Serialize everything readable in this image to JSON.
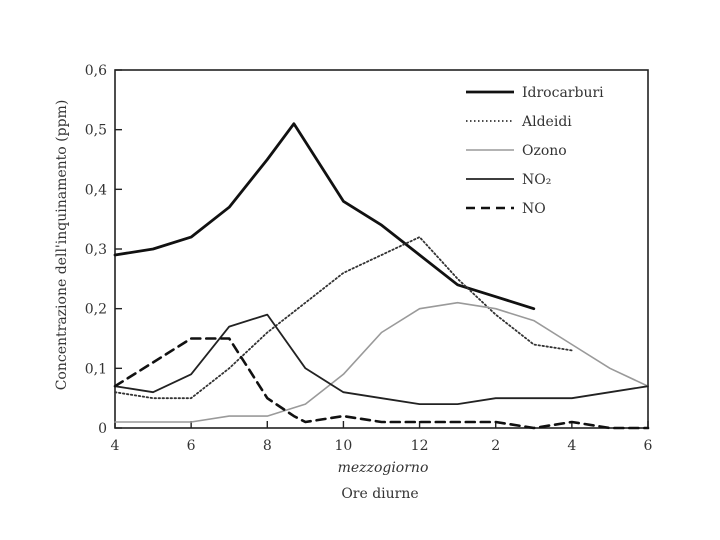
{
  "chart_data": {
    "type": "line",
    "ylabel": "Concentrazione dell'inquinamento (ppm)",
    "xlabel_line1": "mezzogiorno",
    "xlabel_line2": "Ore diurne",
    "hours": [
      4,
      5,
      6,
      7,
      8,
      9,
      10,
      11,
      12,
      13,
      14,
      15,
      16,
      17,
      18
    ],
    "xticks": [
      {
        "h": 4,
        "label": "4"
      },
      {
        "h": 6,
        "label": "6"
      },
      {
        "h": 8,
        "label": "8"
      },
      {
        "h": 10,
        "label": "10"
      },
      {
        "h": 12,
        "label": "12"
      },
      {
        "h": 14,
        "label": "2"
      },
      {
        "h": 16,
        "label": "4"
      },
      {
        "h": 18,
        "label": "6"
      }
    ],
    "yticks": [
      {
        "v": 0,
        "label": "0"
      },
      {
        "v": 0.1,
        "label": "0,1"
      },
      {
        "v": 0.2,
        "label": "0,2"
      },
      {
        "v": 0.3,
        "label": "0,3"
      },
      {
        "v": 0.4,
        "label": "0,4"
      },
      {
        "v": 0.5,
        "label": "0,5"
      },
      {
        "v": 0.6,
        "label": "0,6"
      }
    ],
    "xlim": [
      4,
      18
    ],
    "ylim": [
      0,
      0.6
    ],
    "grid": false,
    "legend_position": "top-right",
    "series": [
      {
        "name": "Idrocarburi",
        "style": "solid-thick",
        "color": "#111111",
        "x": [
          4,
          5,
          6,
          7,
          8,
          8.7,
          10,
          11,
          12,
          13,
          14,
          15
        ],
        "y": [
          0.29,
          0.3,
          0.32,
          0.37,
          0.45,
          0.51,
          0.38,
          0.34,
          0.29,
          0.24,
          0.22,
          0.2
        ]
      },
      {
        "name": "Aldeidi",
        "style": "dotted",
        "color": "#333333",
        "x": [
          4,
          5,
          6,
          7,
          8,
          9,
          10,
          11,
          12,
          13,
          14,
          15,
          16
        ],
        "y": [
          0.06,
          0.05,
          0.05,
          0.1,
          0.16,
          0.21,
          0.26,
          0.29,
          0.32,
          0.25,
          0.19,
          0.14,
          0.13
        ]
      },
      {
        "name": "Ozono",
        "style": "solid-light",
        "color": "#9a9a9a",
        "x": [
          4,
          5,
          6,
          7,
          8,
          9,
          10,
          11,
          12,
          13,
          14,
          15,
          16,
          17,
          18
        ],
        "y": [
          0.01,
          0.01,
          0.01,
          0.02,
          0.02,
          0.04,
          0.09,
          0.16,
          0.2,
          0.21,
          0.2,
          0.18,
          0.14,
          0.1,
          0.07
        ]
      },
      {
        "name": "NO₂",
        "style": "solid",
        "color": "#222222",
        "x": [
          4,
          5,
          6,
          7,
          8,
          9,
          10,
          11,
          12,
          13,
          14,
          15,
          16,
          17,
          18
        ],
        "y": [
          0.07,
          0.06,
          0.09,
          0.17,
          0.19,
          0.1,
          0.06,
          0.05,
          0.04,
          0.04,
          0.05,
          0.05,
          0.05,
          0.06,
          0.07
        ]
      },
      {
        "name": "NO",
        "style": "dashed",
        "color": "#111111",
        "x": [
          4,
          5,
          6,
          7,
          7.5,
          8,
          8.7,
          9,
          10,
          11,
          12,
          13,
          14,
          15,
          16,
          17,
          18
        ],
        "y": [
          0.07,
          0.11,
          0.15,
          0.15,
          0.1,
          0.05,
          0.02,
          0.01,
          0.02,
          0.01,
          0.01,
          0.01,
          0.01,
          0.0,
          0.01,
          0.0,
          0.0
        ]
      }
    ]
  }
}
